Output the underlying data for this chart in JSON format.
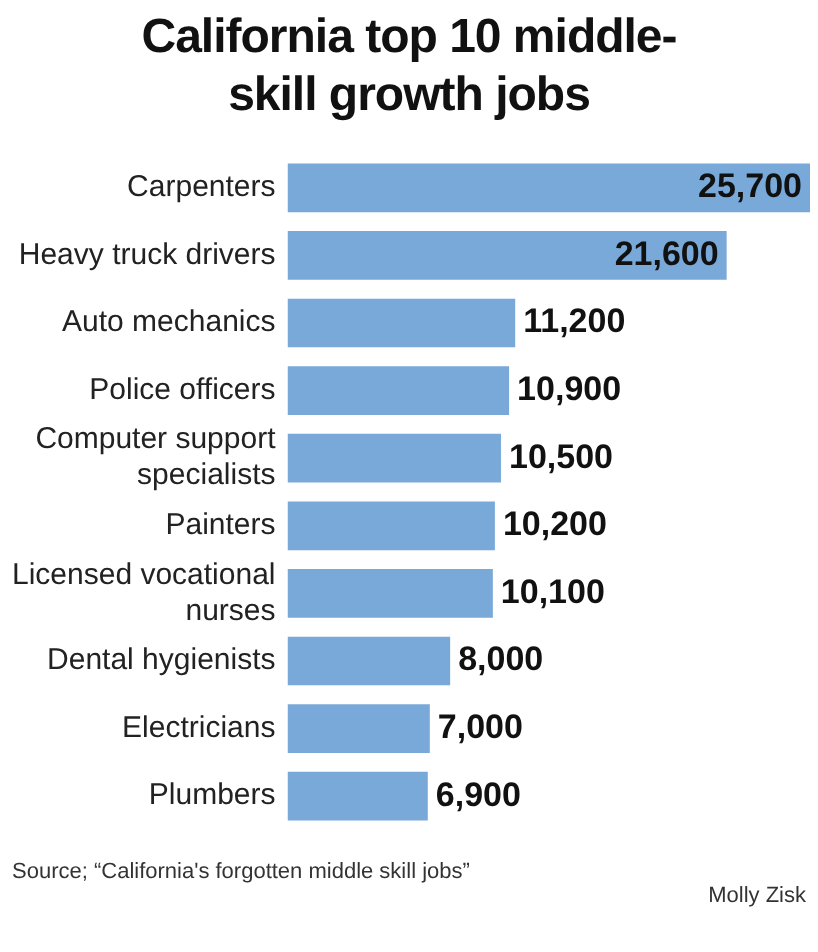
{
  "chart_data": {
    "type": "bar",
    "orientation": "horizontal",
    "title": "California top 10 middle-skill growth jobs",
    "categories": [
      "Carpenters",
      "Heavy truck drivers",
      "Auto mechanics",
      "Police officers",
      "Computer support specialists",
      "Painters",
      "Licensed vocational nurses",
      "Dental hygienists",
      "Electricians",
      "Plumbers"
    ],
    "values": [
      25700,
      21600,
      11200,
      10900,
      10500,
      10200,
      10100,
      8000,
      7000,
      6900
    ],
    "value_labels": [
      "25,700",
      "21,600",
      "11,200",
      "10,900",
      "10,500",
      "10,200",
      "10,100",
      "8,000",
      "7,000",
      "6,900"
    ],
    "color": "#78a9d9",
    "grid": false,
    "legend": false,
    "annotations": [
      "Source; “California's forgotten middle skill jobs”",
      "Molly Zisk"
    ]
  }
}
